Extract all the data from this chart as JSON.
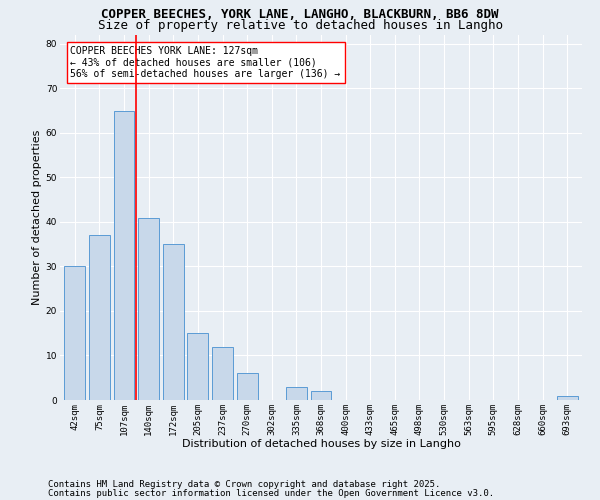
{
  "title_line1": "COPPER BEECHES, YORK LANE, LANGHO, BLACKBURN, BB6 8DW",
  "title_line2": "Size of property relative to detached houses in Langho",
  "xlabel": "Distribution of detached houses by size in Langho",
  "ylabel": "Number of detached properties",
  "categories": [
    "42sqm",
    "75sqm",
    "107sqm",
    "140sqm",
    "172sqm",
    "205sqm",
    "237sqm",
    "270sqm",
    "302sqm",
    "335sqm",
    "368sqm",
    "400sqm",
    "433sqm",
    "465sqm",
    "498sqm",
    "530sqm",
    "563sqm",
    "595sqm",
    "628sqm",
    "660sqm",
    "693sqm"
  ],
  "values": [
    30,
    37,
    65,
    41,
    35,
    15,
    12,
    6,
    0,
    3,
    2,
    0,
    0,
    0,
    0,
    0,
    0,
    0,
    0,
    0,
    1
  ],
  "bar_color": "#c8d8ea",
  "bar_edge_color": "#5b9bd5",
  "red_line_x": 2.5,
  "annotation_title": "COPPER BEECHES YORK LANE: 127sqm",
  "annotation_line2": "← 43% of detached houses are smaller (106)",
  "annotation_line3": "56% of semi-detached houses are larger (136) →",
  "ylim": [
    0,
    82
  ],
  "yticks": [
    0,
    10,
    20,
    30,
    40,
    50,
    60,
    70,
    80
  ],
  "bg_color": "#e8eef4",
  "plot_bg_color": "#e8eef4",
  "footer_line1": "Contains HM Land Registry data © Crown copyright and database right 2025.",
  "footer_line2": "Contains public sector information licensed under the Open Government Licence v3.0.",
  "title_fontsize": 9,
  "subtitle_fontsize": 9,
  "axis_label_fontsize": 8,
  "tick_fontsize": 6.5,
  "annotation_fontsize": 7,
  "footer_fontsize": 6.5
}
